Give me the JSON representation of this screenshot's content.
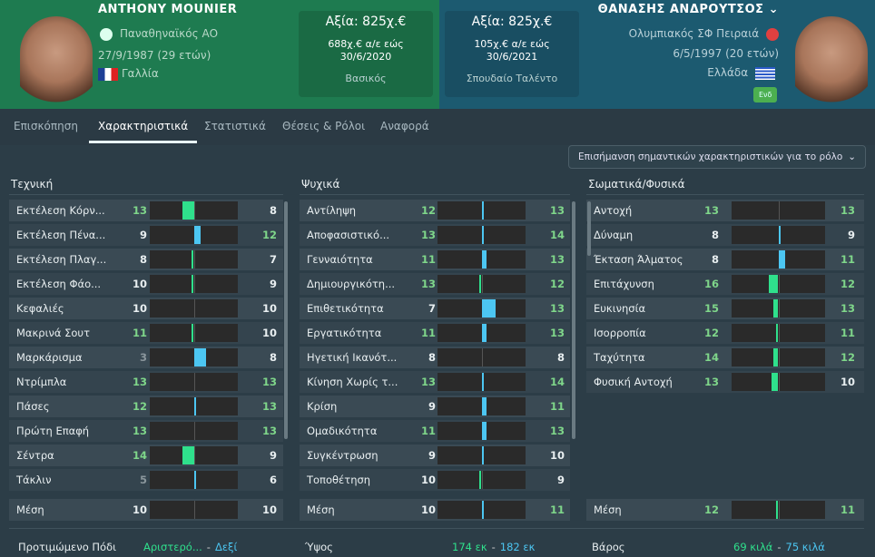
{
  "left_player": {
    "name": "ANTHONY MOUNIER",
    "club": "Παναθηναϊκός ΑΟ",
    "dob": "27/9/1987 (29 ετών)",
    "nation": "Γαλλία",
    "value": "Αξία: 825χ.€",
    "wage": "688χ.€ α/ε εώς",
    "contract": "30/6/2020",
    "status": "Βασικός"
  },
  "right_player": {
    "name": "ΘΑΝΑΣΗΣ ΑΝΔΡΟΥΤΣΟΣ",
    "club": "Ολυμπιακός ΣΦ Πειραιά",
    "dob": "6/5/1997 (20 ετών)",
    "nation": "Ελλάδα",
    "badge": "Ενδ",
    "value": "Αξία: 825χ.€",
    "wage": "105χ.€ α/ε εώς",
    "contract": "30/6/2021",
    "status": "Σπουδαίο Ταλέντο"
  },
  "tabs": [
    "Επισκόπηση",
    "Χαρακτηριστικά",
    "Στατιστικά",
    "Θέσεις & Ρόλοι",
    "Αναφορά"
  ],
  "highlight_dropdown": "Επισήμανση σημαντικών χαρακτηριστικών για το ρόλο",
  "colors": {
    "left_better": "#2fe08c",
    "right_better": "#4cc6f2",
    "high_value": "#7fd68a"
  },
  "sections": [
    {
      "title": "Τεχνική",
      "rows": [
        {
          "label": "Εκτέλεση Κόρν...",
          "l": 13,
          "r": 8
        },
        {
          "label": "Εκτέλεση Πένα...",
          "l": 9,
          "r": 12
        },
        {
          "label": "Εκτέλεση Πλαγ...",
          "l": 8,
          "r": 7
        },
        {
          "label": "Εκτέλεση Φάο...",
          "l": 10,
          "r": 9
        },
        {
          "label": "Κεφαλιές",
          "l": 10,
          "r": 10
        },
        {
          "label": "Μακρινά Σουτ",
          "l": 11,
          "r": 10
        },
        {
          "label": "Μαρκάρισμα",
          "l": 3,
          "r": 8
        },
        {
          "label": "Ντρίμπλα",
          "l": 13,
          "r": 13
        },
        {
          "label": "Πάσες",
          "l": 12,
          "r": 13
        },
        {
          "label": "Πρώτη Επαφή",
          "l": 13,
          "r": 13
        },
        {
          "label": "Σέντρα",
          "l": 14,
          "r": 9
        },
        {
          "label": "Τάκλιν",
          "l": 5,
          "r": 6
        }
      ],
      "avg": {
        "label": "Μέση",
        "l": 10,
        "r": 10
      }
    },
    {
      "title": "Ψυχικά",
      "rows": [
        {
          "label": "Αντίληψη",
          "l": 12,
          "r": 13
        },
        {
          "label": "Αποφασιστικό...",
          "l": 13,
          "r": 14
        },
        {
          "label": "Γενναιότητα",
          "l": 11,
          "r": 13
        },
        {
          "label": "Δημιουργικότη...",
          "l": 13,
          "r": 12
        },
        {
          "label": "Επιθετικότητα",
          "l": 7,
          "r": 13
        },
        {
          "label": "Εργατικότητα",
          "l": 11,
          "r": 13
        },
        {
          "label": "Ηγετική Ικανότ...",
          "l": 8,
          "r": 8
        },
        {
          "label": "Κίνηση Χωρίς τ...",
          "l": 13,
          "r": 14
        },
        {
          "label": "Κρίση",
          "l": 9,
          "r": 11
        },
        {
          "label": "Ομαδικότητα",
          "l": 11,
          "r": 13
        },
        {
          "label": "Συγκέντρωση",
          "l": 9,
          "r": 10
        },
        {
          "label": "Τοποθέτηση",
          "l": 10,
          "r": 9
        }
      ],
      "avg": {
        "label": "Μέση",
        "l": 10,
        "r": 11
      }
    },
    {
      "title": "Σωματικά/Φυσικά",
      "rows": [
        {
          "label": "Αντοχή",
          "l": 13,
          "r": 13
        },
        {
          "label": "Δύναμη",
          "l": 8,
          "r": 9
        },
        {
          "label": "Έκταση Άλματος",
          "l": 8,
          "r": 11
        },
        {
          "label": "Επιτάχυνση",
          "l": 16,
          "r": 12
        },
        {
          "label": "Ευκινησία",
          "l": 15,
          "r": 13
        },
        {
          "label": "Ισορροπία",
          "l": 12,
          "r": 11
        },
        {
          "label": "Ταχύτητα",
          "l": 14,
          "r": 12
        },
        {
          "label": "Φυσική Αντοχή",
          "l": 13,
          "r": 10
        }
      ],
      "avg": {
        "label": "Μέση",
        "l": 12,
        "r": 11
      }
    }
  ],
  "bottom": [
    {
      "label": "Προτιμώμενο Πόδι",
      "l": "Αριστερό...",
      "sep": "-",
      "r": "Δεξί"
    },
    {
      "label": "Ύψος",
      "l": "174 εκ",
      "sep": "-",
      "r": "182 εκ"
    },
    {
      "label": "Βάρος",
      "l": "69 κιλά",
      "sep": "-",
      "r": "75 κιλά"
    }
  ]
}
